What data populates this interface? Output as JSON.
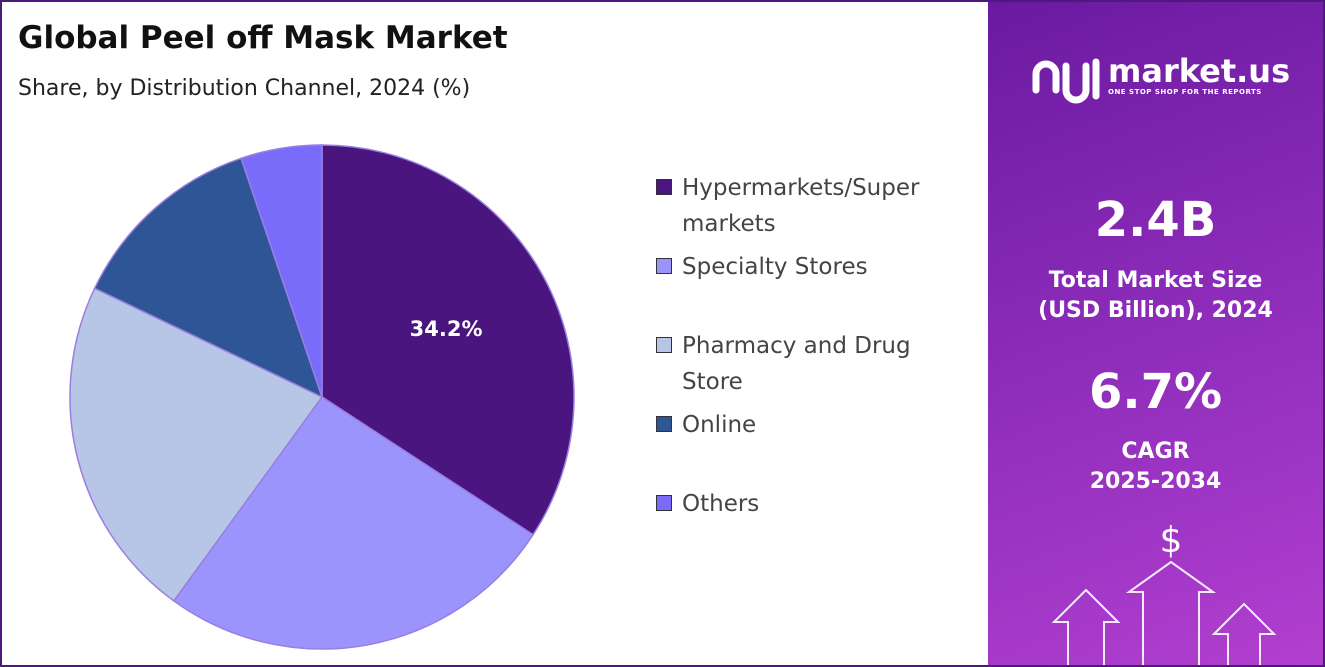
{
  "chart_data": {
    "type": "pie",
    "title": "Global Peel off Mask Market",
    "subtitle": "Share, by Distribution Channel, 2024 (%)",
    "categories": [
      "Hypermarkets/Super markets",
      "Specialty Stores",
      "Pharmacy and Drug Store",
      "Online",
      "Others"
    ],
    "values": [
      34.2,
      25.8,
      22.1,
      12.7,
      5.2
    ],
    "value_labels": [
      "34.2%",
      null,
      null,
      null,
      null
    ],
    "colors": [
      "#4b1580",
      "#9b94fc",
      "#b7c5e6",
      "#2e5596",
      "#7a6cfb"
    ],
    "legend": "right"
  },
  "panel": {
    "brand": "market.us",
    "tagline": "ONE STOP SHOP FOR THE REPORTS",
    "market_size": "2.4B",
    "market_size_label": "Total Market Size (USD Billion), 2024",
    "cagr": "6.7%",
    "cagr_label": "CAGR",
    "cagr_period": "2025-2034"
  }
}
